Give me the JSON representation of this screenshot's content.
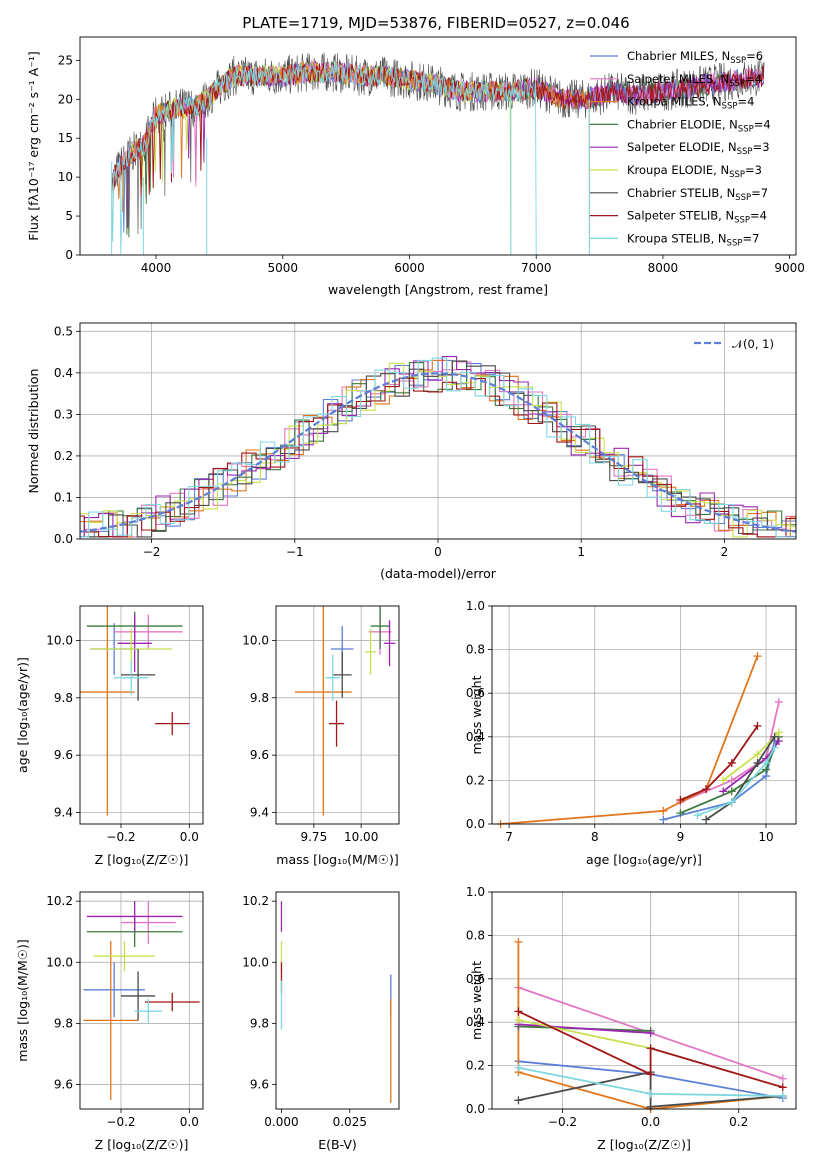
{
  "figure_title": "PLATE=1719, MJD=53876, FIBERID=0527, z=0.046",
  "legend_labels": [
    "Chabrier MILES, N",
    "Salpeter MILES, N",
    "Kroupa MILES, N",
    "Chabrier ELODIE, N",
    "Salpeter ELODIE, N",
    "Kroupa ELODIE, N",
    "Chabrier STELIB, N",
    "Salpeter STELIB, N",
    "Kroupa STELIB, N"
  ],
  "legend_sub": "SSP",
  "colors": {
    "axis": "#000000",
    "grid": "#b0b0b0",
    "gaussian": "#5b7fd6",
    "series": [
      "#5b7fd6",
      "#e377c2",
      "#e0761c",
      "#3d7a3d",
      "#9b27b0",
      "#c9e04f",
      "#4a4a4a",
      "#a01515",
      "#7fd7e0"
    ]
  },
  "chart_data": [
    {
      "id": "spectrum",
      "type": "line",
      "title": "PLATE=1719, MJD=53876, FIBERID=0527, z=0.046",
      "xlabel": "wavelength [Angstrom, rest frame]",
      "ylabel": "Flux [fλ10⁻¹⁷ erg cm⁻² s⁻¹ A⁻¹]",
      "xlim": [
        3400,
        9050
      ],
      "ylim": [
        0,
        28
      ],
      "xticks": [
        4000,
        5000,
        6000,
        7000,
        8000,
        9000
      ],
      "yticks": [
        0,
        5,
        10,
        15,
        20,
        25
      ],
      "grid": false,
      "legend_loc": "upper right",
      "series": [
        {
          "name": "Chabrier MILES, N_SSP=6",
          "nssp": "6"
        },
        {
          "name": "Salpeter MILES, N_SSP=4",
          "nssp": "4"
        },
        {
          "name": "Kroupa MILES, N_SSP=4",
          "nssp": "4"
        },
        {
          "name": "Chabrier ELODIE, N_SSP=4",
          "nssp": "4"
        },
        {
          "name": "Salpeter ELODIE, N_SSP=3",
          "nssp": "3"
        },
        {
          "name": "Kroupa ELODIE, N_SSP=3",
          "nssp": "3"
        },
        {
          "name": "Chabrier STELIB, N_SSP=7",
          "nssp": "7"
        },
        {
          "name": "Salpeter STELIB, N_SSP=4",
          "nssp": "4"
        },
        {
          "name": "Kroupa STELIB, N_SSP=7",
          "nssp": "7"
        }
      ],
      "continuum": {
        "x": [
          3650,
          3700,
          3800,
          3900,
          4000,
          4100,
          4200,
          4300,
          4400,
          4500,
          4600,
          4800,
          5000,
          5200,
          5400,
          5600,
          5800,
          6000,
          6200,
          6400,
          6600,
          6800,
          7000,
          7200,
          7400,
          7600,
          7800,
          8000,
          8200,
          8400,
          8600,
          8800
        ],
        "y": [
          9,
          11,
          13,
          14,
          18,
          18.5,
          19,
          19,
          20,
          21.5,
          23,
          23,
          23,
          23.5,
          23.5,
          23,
          23,
          22.5,
          22,
          21,
          21,
          21,
          21.5,
          20,
          20,
          21,
          20.5,
          21,
          21.5,
          22,
          22.5,
          23
        ]
      },
      "truncations": [
        {
          "series": "Kroupa MILES",
          "end_x": 7420
        },
        {
          "series": "Kroupa ELODIE",
          "end_x": 6800
        },
        {
          "series": "Kroupa STELIB",
          "end_x": 7000
        }
      ]
    },
    {
      "id": "residuals",
      "type": "histogram",
      "xlabel": "(data-model)/error",
      "ylabel": "Normed distribution",
      "xlim": [
        -2.5,
        2.5
      ],
      "ylim": [
        0,
        0.52
      ],
      "xticks": [
        -2,
        -1,
        0,
        1,
        2
      ],
      "yticks": [
        0.0,
        0.1,
        0.2,
        0.3,
        0.4,
        0.5
      ],
      "grid": true,
      "legend": "𝒩(0, 1)",
      "legend_loc": "upper right",
      "bin_width": 0.1,
      "reference_curve": "standard normal N(0,1)"
    },
    {
      "id": "age-vs-Z",
      "type": "scatter",
      "error_bars": true,
      "xlabel": "Z [log10(Z/Z☉)]",
      "ylabel": "age [log10(age/yr)]",
      "xlim": [
        -0.32,
        0.04
      ],
      "ylim": [
        9.36,
        10.12
      ],
      "xticks": [
        -0.2,
        0.0
      ],
      "yticks": [
        9.4,
        9.6,
        9.8,
        10.0
      ],
      "grid": true,
      "points": [
        {
          "x": -0.22,
          "xerr": 0.07,
          "y": 9.97,
          "yerr": 0.09,
          "series": 0
        },
        {
          "x": -0.12,
          "xerr": 0.1,
          "y": 10.03,
          "yerr": 0.06,
          "series": 1
        },
        {
          "x": -0.24,
          "xerr": 0.08,
          "y": 9.82,
          "yerr": 0.43,
          "series": 2
        },
        {
          "x": -0.16,
          "xerr": 0.14,
          "y": 10.05,
          "yerr": 0.05,
          "series": 3
        },
        {
          "x": -0.16,
          "xerr": 0.05,
          "y": 9.99,
          "yerr": 0.1,
          "series": 4
        },
        {
          "x": -0.17,
          "xerr": 0.12,
          "y": 9.97,
          "yerr": 0.07,
          "series": 5
        },
        {
          "x": -0.15,
          "xerr": 0.05,
          "y": 9.88,
          "yerr": 0.09,
          "series": 6
        },
        {
          "x": -0.05,
          "xerr": 0.05,
          "y": 9.71,
          "yerr": 0.04,
          "series": 7
        },
        {
          "x": -0.17,
          "xerr": 0.05,
          "y": 9.87,
          "yerr": 0.06,
          "series": 8
        }
      ]
    },
    {
      "id": "age-vs-mass",
      "type": "scatter",
      "error_bars": true,
      "xlabel": "mass [log10(M/M☉)]",
      "xlim": [
        9.55,
        10.2
      ],
      "ylim": [
        9.36,
        10.12
      ],
      "xticks": [
        9.75,
        10.0
      ],
      "yticks": [
        9.4,
        9.6,
        9.8,
        10.0
      ],
      "grid": true,
      "points": [
        {
          "x": 9.9,
          "xerr": 0.06,
          "y": 9.97,
          "series": 0
        },
        {
          "x": 10.1,
          "xerr": 0.06,
          "y": 10.03,
          "series": 1
        },
        {
          "x": 9.8,
          "xerr": 0.15,
          "y": 9.82,
          "yerr": 0.43,
          "series": 2
        },
        {
          "x": 10.1,
          "xerr": 0.05,
          "y": 10.05,
          "series": 3
        },
        {
          "x": 10.15,
          "xerr": 0.03,
          "y": 9.99,
          "series": 4
        },
        {
          "x": 10.05,
          "xerr": 0.03,
          "y": 9.96,
          "series": 5
        },
        {
          "x": 9.9,
          "xerr": 0.05,
          "y": 9.88,
          "series": 6
        },
        {
          "x": 9.87,
          "xerr": 0.04,
          "y": 9.71,
          "series": 7
        },
        {
          "x": 9.85,
          "xerr": 0.04,
          "y": 9.87,
          "series": 8
        }
      ]
    },
    {
      "id": "mass-weight-vs-age",
      "type": "line",
      "xlabel": "age [log10(age/yr)]",
      "ylabel": "mass weight",
      "xlim": [
        6.8,
        10.35
      ],
      "ylim": [
        0,
        1.0
      ],
      "xticks": [
        7,
        8,
        9,
        10
      ],
      "yticks": [
        0.0,
        0.2,
        0.4,
        0.6,
        0.8,
        1.0
      ],
      "grid": true,
      "series": [
        {
          "color_index": 0,
          "x": [
            8.8,
            9.6,
            10.0,
            10.1
          ],
          "y": [
            0.02,
            0.1,
            0.22,
            0.38
          ]
        },
        {
          "color_index": 1,
          "x": [
            9.0,
            9.6,
            10.0,
            10.15
          ],
          "y": [
            0.1,
            0.2,
            0.3,
            0.56
          ]
        },
        {
          "color_index": 2,
          "x": [
            6.9,
            8.8,
            9.3,
            9.9
          ],
          "y": [
            0.0,
            0.06,
            0.16,
            0.77
          ]
        },
        {
          "color_index": 3,
          "x": [
            9.0,
            9.6,
            10.0,
            10.15
          ],
          "y": [
            0.05,
            0.15,
            0.25,
            0.4
          ]
        },
        {
          "color_index": 4,
          "x": [
            9.5,
            10.0,
            10.15
          ],
          "y": [
            0.15,
            0.3,
            0.38
          ]
        },
        {
          "color_index": 5,
          "x": [
            9.5,
            9.9,
            10.15
          ],
          "y": [
            0.2,
            0.32,
            0.42
          ]
        },
        {
          "color_index": 6,
          "x": [
            9.3,
            9.6,
            9.9,
            10.1
          ],
          "y": [
            0.02,
            0.1,
            0.28,
            0.4
          ]
        },
        {
          "color_index": 7,
          "x": [
            9.0,
            9.3,
            9.6,
            9.9
          ],
          "y": [
            0.11,
            0.16,
            0.28,
            0.45
          ]
        },
        {
          "color_index": 8,
          "x": [
            9.2,
            9.6,
            10.0,
            10.1
          ],
          "y": [
            0.04,
            0.1,
            0.28,
            0.35
          ]
        }
      ]
    },
    {
      "id": "mass-vs-Z",
      "type": "scatter",
      "error_bars": true,
      "xlabel": "Z [log10(Z/Z☉)]",
      "ylabel": "mass [log10(M/M☉)]",
      "xlim": [
        -0.32,
        0.04
      ],
      "ylim": [
        9.52,
        10.23
      ],
      "xticks": [
        -0.2,
        0.0
      ],
      "yticks": [
        9.6,
        9.8,
        10.0,
        10.2
      ],
      "grid": true,
      "points": [
        {
          "x": -0.22,
          "xerr": 0.09,
          "y": 9.91,
          "yerr": 0.09,
          "series": 0
        },
        {
          "x": -0.12,
          "xerr": 0.08,
          "y": 10.13,
          "yerr": 0.07,
          "series": 1
        },
        {
          "x": -0.23,
          "xerr": 0.08,
          "y": 9.81,
          "yerr": 0.26,
          "series": 2
        },
        {
          "x": -0.16,
          "xerr": 0.14,
          "y": 10.1,
          "yerr": 0.05,
          "series": 3
        },
        {
          "x": -0.16,
          "xerr": 0.14,
          "y": 10.15,
          "yerr": 0.05,
          "series": 4
        },
        {
          "x": -0.19,
          "xerr": 0.09,
          "y": 10.02,
          "yerr": 0.05,
          "series": 5
        },
        {
          "x": -0.15,
          "xerr": 0.05,
          "y": 9.89,
          "yerr": 0.08,
          "series": 6
        },
        {
          "x": -0.05,
          "xerr": 0.08,
          "y": 9.87,
          "yerr": 0.03,
          "series": 7
        },
        {
          "x": -0.12,
          "xerr": 0.04,
          "y": 9.84,
          "yerr": 0.04,
          "series": 8
        }
      ]
    },
    {
      "id": "mass-vs-ebv",
      "type": "scatter",
      "error_bars": true,
      "xlabel": "E(B-V)",
      "xlim": [
        -0.002,
        0.043
      ],
      "ylim": [
        9.52,
        10.23
      ],
      "xticks": [
        0.0,
        0.025
      ],
      "xticklabels": [
        "0.000",
        "0.025"
      ],
      "yticks": [
        9.6,
        9.8,
        10.0,
        10.2
      ],
      "grid": false,
      "points": [
        {
          "x": 0.0,
          "y": 10.15,
          "yerr": 0.05,
          "series": 4
        },
        {
          "x": 0.0,
          "y": 10.02,
          "yerr": 0.05,
          "series": 5
        },
        {
          "x": 0.0,
          "y": 9.95,
          "yerr": 0.05,
          "series": 7
        },
        {
          "x": 0.0,
          "y": 9.86,
          "yerr": 0.08,
          "series": 8
        },
        {
          "x": 0.04,
          "y": 9.89,
          "yerr": 0.07,
          "series": 0
        },
        {
          "x": 0.04,
          "y": 9.71,
          "yerr": 0.17,
          "series": 2
        }
      ]
    },
    {
      "id": "mass-weight-vs-Z",
      "type": "line",
      "xlabel": "Z [log10(Z/Z☉)]",
      "ylabel": "mass weight",
      "xlim": [
        -0.36,
        0.33
      ],
      "ylim": [
        0,
        1.0
      ],
      "xticks": [
        -0.2,
        0.0,
        0.2
      ],
      "yticks": [
        0.0,
        0.2,
        0.4,
        0.6,
        0.8,
        1.0
      ],
      "grid": true,
      "series": [
        {
          "color_index": 0,
          "x": [
            -0.3,
            0.0,
            0.3
          ],
          "y": [
            0.22,
            0.16,
            0.05
          ]
        },
        {
          "color_index": 1,
          "x": [
            -0.3,
            0.3
          ],
          "y": [
            0.56,
            0.14
          ]
        },
        {
          "color_index": 2,
          "x": [
            -0.3,
            -0.3,
            0.0,
            0.3
          ],
          "y": [
            0.77,
            0.17,
            0.0,
            0.06
          ]
        },
        {
          "color_index": 3,
          "x": [
            -0.3,
            0.0
          ],
          "y": [
            0.38,
            0.36
          ]
        },
        {
          "color_index": 4,
          "x": [
            -0.3,
            0.0
          ],
          "y": [
            0.39,
            0.35
          ]
        },
        {
          "color_index": 5,
          "x": [
            -0.3,
            0.0
          ],
          "y": [
            0.41,
            0.28
          ]
        },
        {
          "color_index": 6,
          "x": [
            -0.3,
            0.0,
            0.0,
            0.3
          ],
          "y": [
            0.04,
            0.17,
            0.01,
            0.06
          ]
        },
        {
          "color_index": 7,
          "x": [
            -0.3,
            0.0,
            0.0,
            0.3
          ],
          "y": [
            0.45,
            0.16,
            0.28,
            0.1
          ]
        },
        {
          "color_index": 8,
          "x": [
            -0.3,
            0.0,
            0.3
          ],
          "y": [
            0.19,
            0.07,
            0.06
          ]
        }
      ]
    }
  ]
}
